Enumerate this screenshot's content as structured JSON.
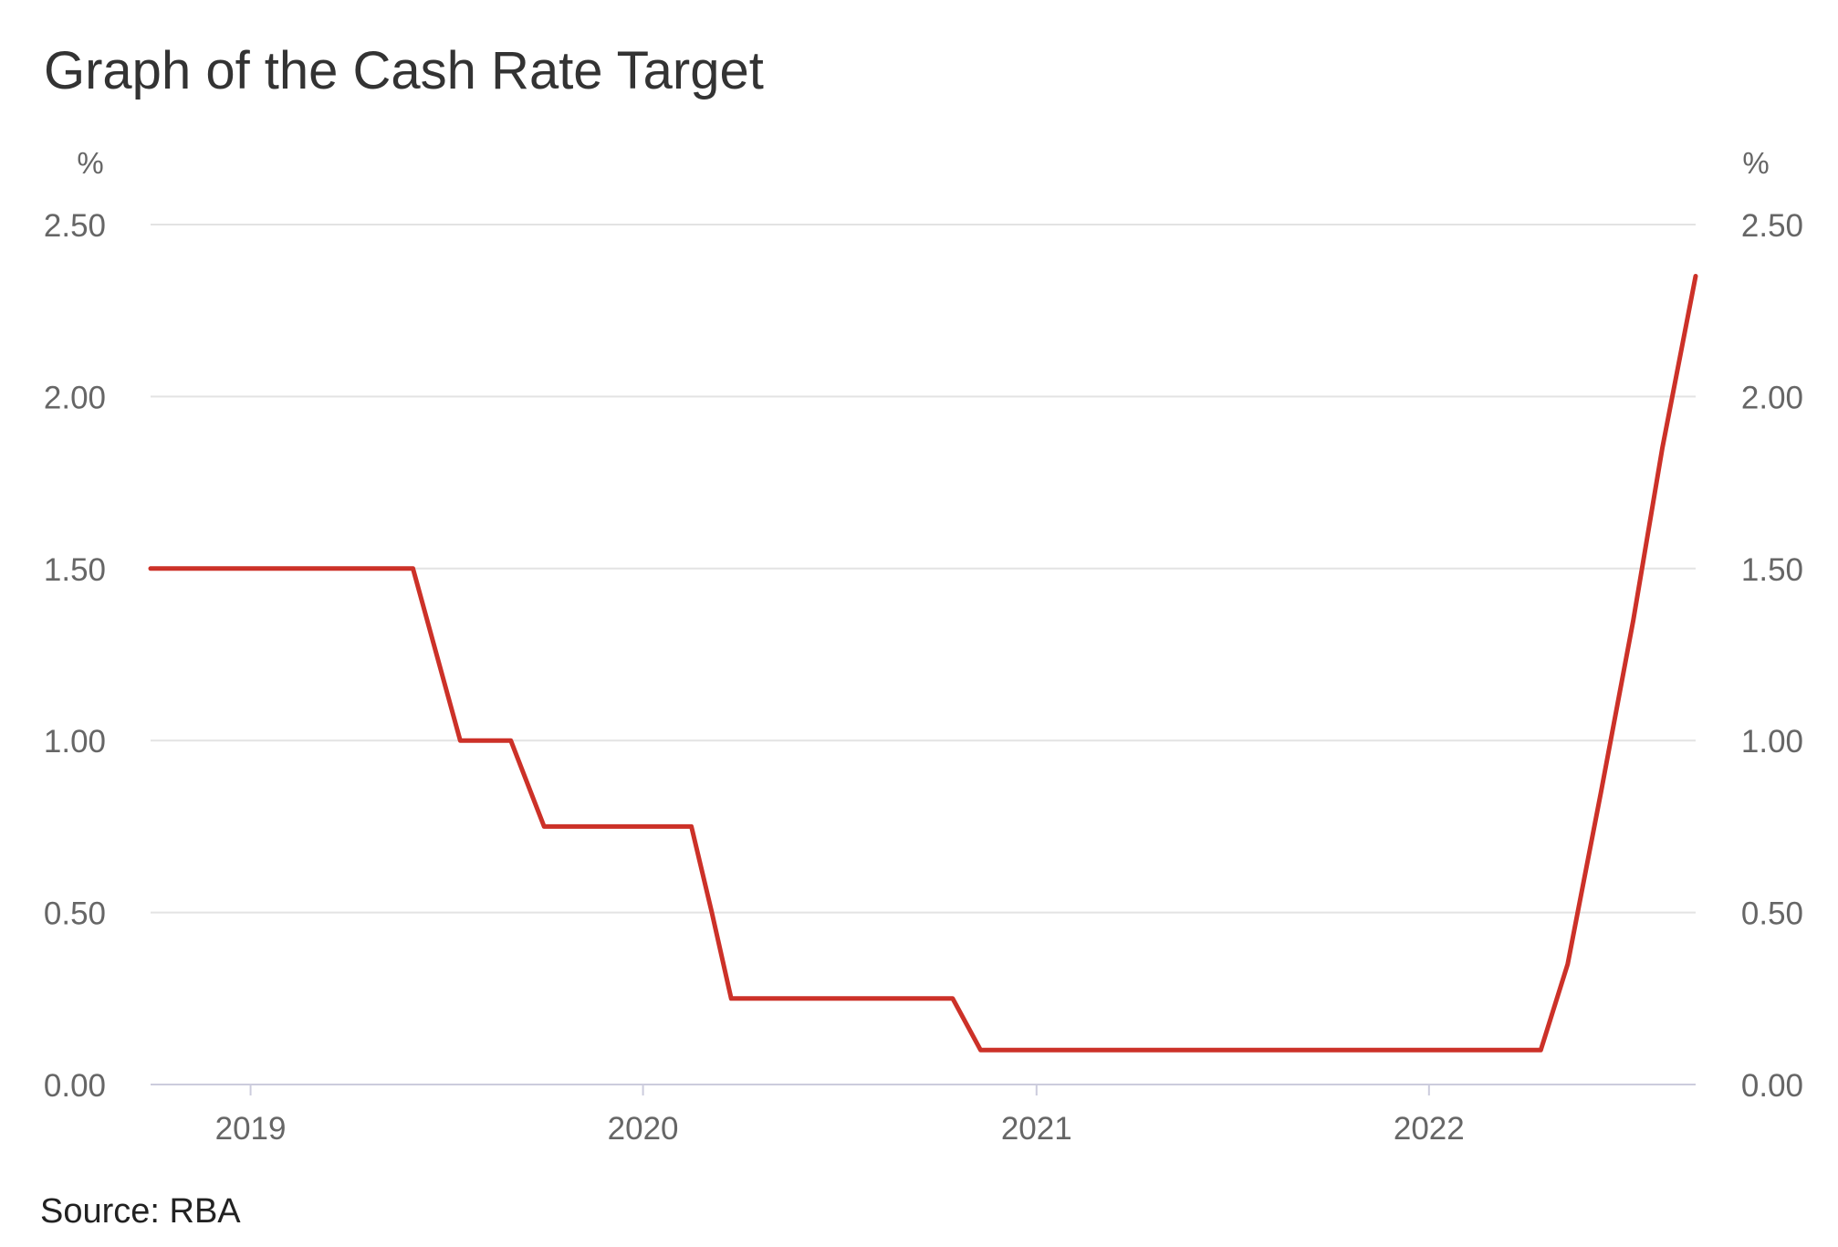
{
  "page": {
    "title": "Graph of the Cash Rate Target",
    "source": "Source: RBA"
  },
  "colors": {
    "line": "#cc3128",
    "grid": "#e3e3e3",
    "axis": "#ccccdd",
    "tick_text": "#666666"
  },
  "chart_data": {
    "type": "line",
    "title": "Graph of the Cash Rate Target",
    "xlabel": "",
    "ylabel": "%",
    "ylabel_right": "%",
    "ylim": [
      0,
      2.5
    ],
    "y_ticks": [
      "0.00",
      "0.50",
      "1.00",
      "1.50",
      "2.00",
      "2.50"
    ],
    "y_tick_values": [
      0,
      0.5,
      1,
      1.5,
      2,
      2.5
    ],
    "x_range": [
      "2018-09-30",
      "2022-09-06"
    ],
    "x_ticks": [
      {
        "label": "2019",
        "date": "2019-01-01"
      },
      {
        "label": "2020",
        "date": "2020-01-01"
      },
      {
        "label": "2021",
        "date": "2021-01-01"
      },
      {
        "label": "2022",
        "date": "2022-01-01"
      }
    ],
    "grid": true,
    "legend": "none",
    "series": [
      {
        "points": [
          {
            "x": "2018-09-30",
            "y": 1.5
          },
          {
            "x": "2019-06-01",
            "y": 1.5
          },
          {
            "x": "2019-07-15",
            "y": 1.0
          },
          {
            "x": "2019-08-31",
            "y": 1.0
          },
          {
            "x": "2019-10-01",
            "y": 0.75
          },
          {
            "x": "2020-02-15",
            "y": 0.75
          },
          {
            "x": "2020-03-05",
            "y": 0.5
          },
          {
            "x": "2020-03-23",
            "y": 0.25
          },
          {
            "x": "2020-10-15",
            "y": 0.25
          },
          {
            "x": "2020-11-10",
            "y": 0.1
          },
          {
            "x": "2022-04-15",
            "y": 0.1
          },
          {
            "x": "2022-05-10",
            "y": 0.35
          },
          {
            "x": "2022-06-10",
            "y": 0.85
          },
          {
            "x": "2022-07-10",
            "y": 1.35
          },
          {
            "x": "2022-08-06",
            "y": 1.85
          },
          {
            "x": "2022-09-06",
            "y": 2.35
          }
        ]
      }
    ]
  }
}
